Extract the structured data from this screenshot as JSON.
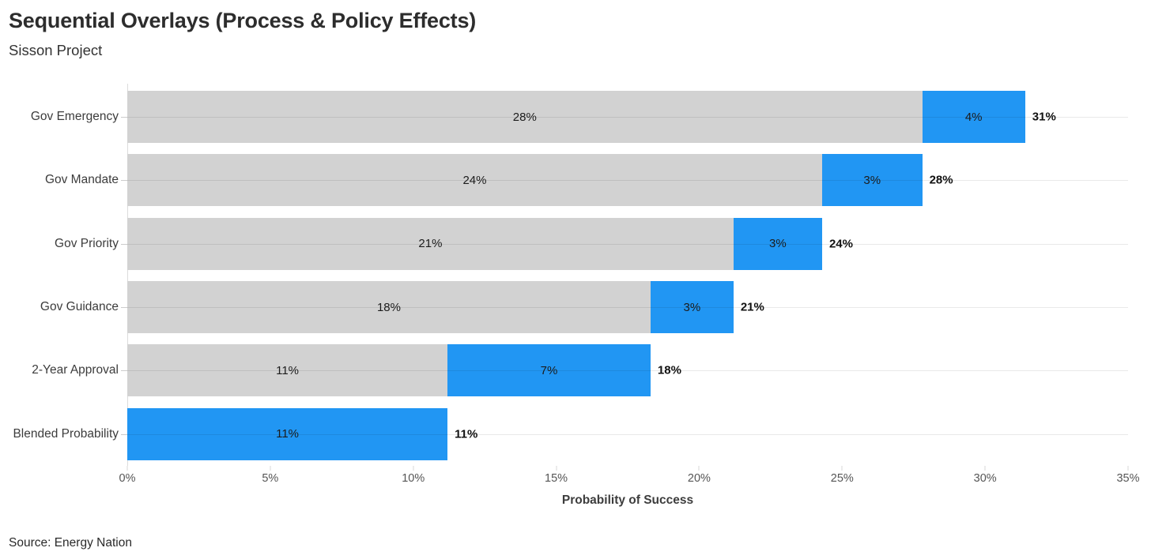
{
  "header": {
    "title": "Sequential Overlays (Process & Policy Effects)",
    "subtitle": "Sisson Project"
  },
  "footer": {
    "source": "Source: Energy Nation"
  },
  "chart_data": {
    "type": "bar",
    "orientation": "horizontal",
    "stacked": true,
    "title": "Sequential Overlays (Process & Policy Effects)",
    "subtitle": "Sisson Project",
    "xlabel": "Probability of Success",
    "ylabel": "",
    "xlim": [
      0,
      35
    ],
    "x_tick_values": [
      0,
      5,
      10,
      15,
      20,
      25,
      30,
      35
    ],
    "x_tick_labels": [
      "0%",
      "5%",
      "10%",
      "15%",
      "20%",
      "25%",
      "30%",
      "35%"
    ],
    "grid": "horizontal-category-lines",
    "legend": "none",
    "categories": [
      "Gov Emergency",
      "Gov Mandate",
      "Gov Priority",
      "Gov Guidance",
      "2-Year Approval",
      "Blended Probability"
    ],
    "series": [
      {
        "name": "base-probability",
        "color": "#d2d2d2",
        "values": [
          27.8,
          24.3,
          21.2,
          18.3,
          11.2,
          0
        ],
        "labels": [
          "28%",
          "24%",
          "21%",
          "18%",
          "11%",
          ""
        ]
      },
      {
        "name": "overlay-effect",
        "color": "#2196f3",
        "values": [
          3.6,
          3.5,
          3.1,
          2.9,
          7.1,
          11.2
        ],
        "labels": [
          "4%",
          "3%",
          "3%",
          "3%",
          "7%",
          "11%"
        ]
      }
    ],
    "totals": {
      "values": [
        31.4,
        27.8,
        24.3,
        21.2,
        18.3,
        11.2
      ],
      "labels": [
        "31%",
        "28%",
        "24%",
        "21%",
        "18%",
        "11%"
      ]
    },
    "colors": {
      "base": "#d2d2d2",
      "overlay": "#2196f3",
      "gridline": "#e9e9e9",
      "axis_line": "#dcdcdc"
    }
  }
}
